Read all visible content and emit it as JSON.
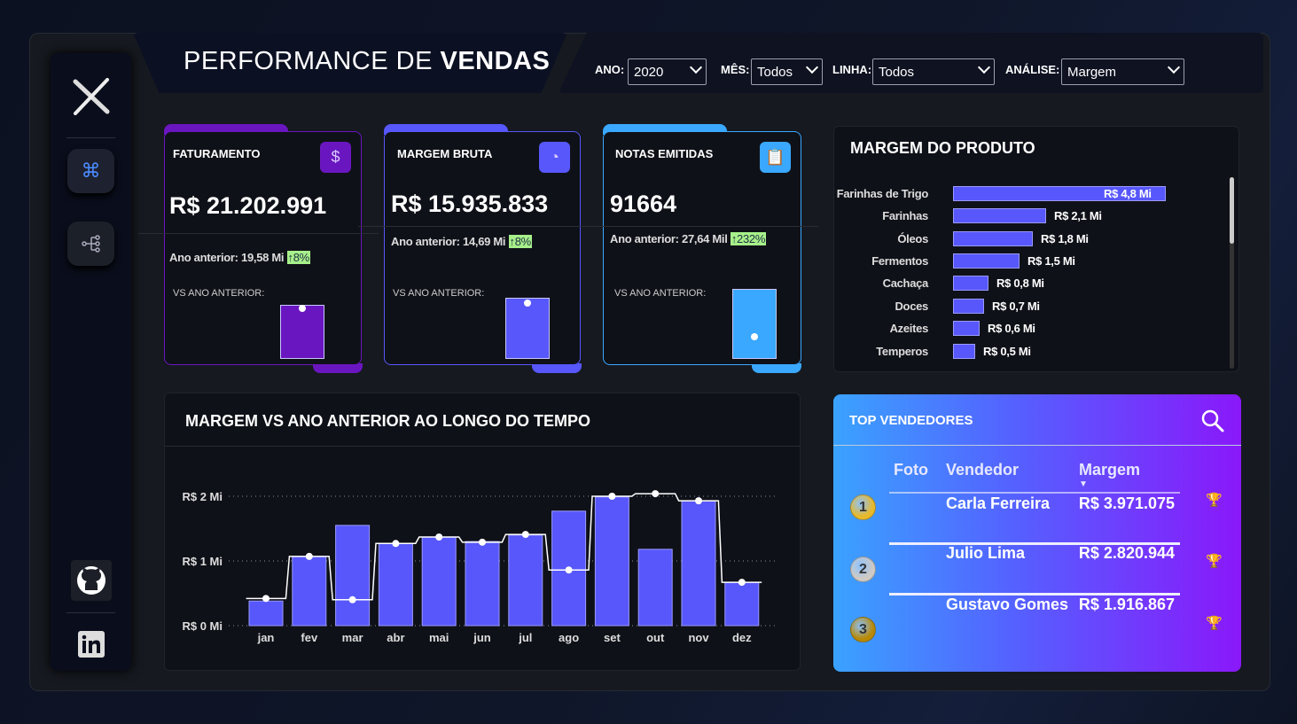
{
  "header": {
    "title_light": "PERFORMANCE DE",
    "title_bold": "VENDAS"
  },
  "filters": [
    {
      "label": "ANO:",
      "value": "2020"
    },
    {
      "label": "MÊS:",
      "value": "Todos"
    },
    {
      "label": "LINHA:",
      "value": "Todos"
    },
    {
      "label": "ANÁLISE:",
      "value": "Margem"
    }
  ],
  "sidebar": {
    "icons": [
      "logo-x-icon",
      "command-icon",
      "hierarchy-icon",
      "github-icon",
      "linkedin-icon"
    ],
    "active_color": "#4a8cff"
  },
  "kpis": [
    {
      "title": "FATURAMENTO",
      "value": "R$ 21.202.991",
      "prev_label": "Ano anterior: 19,58 Mi",
      "change": "↑8%",
      "vs": "VS ANO ANTERIOR:",
      "color": "#6a16c0",
      "icon": "dollar-icon"
    },
    {
      "title": "MARGEM BRUTA",
      "value": "R$ 15.935.833",
      "prev_label": "Ano anterior: 14,69 Mi",
      "change": "↑8%",
      "vs": "VS ANO ANTERIOR:",
      "color": "#5757fb",
      "icon": "pie-chart-icon"
    },
    {
      "title": "NOTAS EMITIDAS",
      "value": "91664",
      "prev_label": "Ano anterior: 27,64 Mil",
      "change": "↑232%",
      "vs": "VS ANO ANTERIOR:",
      "color": "#3aa8ff",
      "icon": "clipboard-chart-icon"
    }
  ],
  "product_margin": {
    "title": "MARGEM DO PRODUTO",
    "items": [
      {
        "name": "Farinhas de Trigo",
        "value": 4.8,
        "label": "R$ 4,8 Mi"
      },
      {
        "name": "Farinhas",
        "value": 2.1,
        "label": "R$ 2,1 Mi"
      },
      {
        "name": "Óleos",
        "value": 1.8,
        "label": "R$ 1,8 Mi"
      },
      {
        "name": "Fermentos",
        "value": 1.5,
        "label": "R$ 1,5 Mi"
      },
      {
        "name": "Cachaça",
        "value": 0.8,
        "label": "R$ 0,8 Mi"
      },
      {
        "name": "Doces",
        "value": 0.7,
        "label": "R$ 0,7 Mi"
      },
      {
        "name": "Azeites",
        "value": 0.6,
        "label": "R$ 0,6 Mi"
      },
      {
        "name": "Temperos",
        "value": 0.5,
        "label": "R$ 0,5 Mi"
      }
    ]
  },
  "chart_data": {
    "type": "bar",
    "title": "MARGEM VS ANO ANTERIOR AO LONGO DO TEMPO",
    "categories": [
      "jan",
      "fev",
      "mar",
      "abr",
      "mai",
      "jun",
      "jul",
      "ago",
      "set",
      "out",
      "nov",
      "dez"
    ],
    "series": [
      {
        "kind": "bar",
        "values": [
          0.38,
          1.07,
          1.55,
          1.27,
          1.37,
          1.3,
          1.4,
          1.77,
          1.99,
          1.18,
          1.93,
          0.67
        ],
        "color": "#5757fb"
      },
      {
        "kind": "step-line",
        "values": [
          0.42,
          1.07,
          0.4,
          1.27,
          1.37,
          1.29,
          1.41,
          0.86,
          2.0,
          2.04,
          1.93,
          0.67
        ],
        "color": "#ffffff"
      }
    ],
    "yticks": [
      "R$ 0 Mi",
      "R$ 1 Mi",
      "R$ 2 Mi"
    ],
    "ylim": [
      0,
      2.1
    ],
    "grid": true,
    "unit": "Mi"
  },
  "top_sellers": {
    "title": "TOP VENDEDORES",
    "columns": [
      "Foto",
      "Vendedor",
      "Margem"
    ],
    "rows": [
      {
        "rank": "1",
        "name": "Carla Ferreira",
        "value": "R$ 3.971.075",
        "medal": "#e8b92a",
        "trophy": "#f0b020"
      },
      {
        "rank": "2",
        "name": "Julio Lima",
        "value": "R$ 2.820.944",
        "medal": "#cfcac4",
        "trophy": "#a8a8b8"
      },
      {
        "rank": "3",
        "name": "Gustavo Gomes",
        "value": "R$ 1.916.867",
        "medal": "#b88a08",
        "trophy": "#e89060"
      }
    ]
  }
}
